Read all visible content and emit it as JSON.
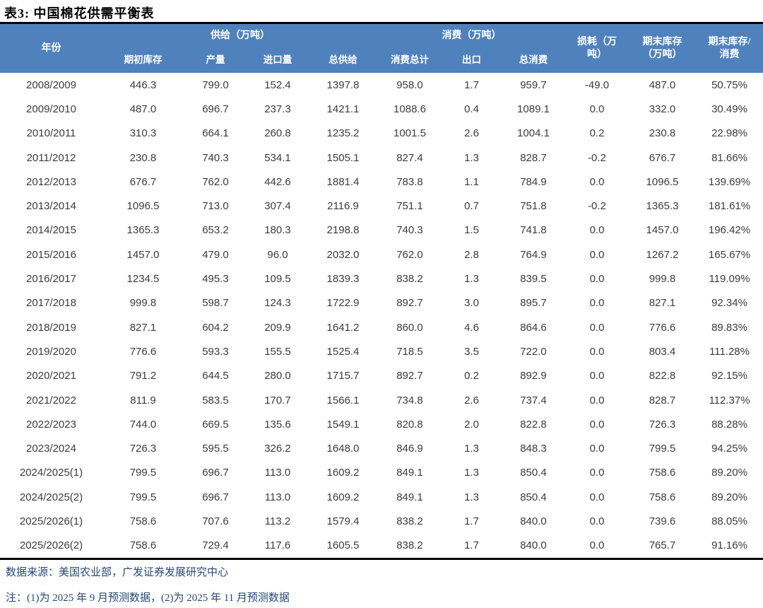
{
  "title": "表3: 中国棉花供需平衡表",
  "colors": {
    "header_bg": "#4F81BD",
    "header_text": "#FFFFFF",
    "rule": "#000000",
    "body_text": "#3B3B3B",
    "footer_text": "#25477B"
  },
  "table": {
    "col_groups": {
      "year": "年份",
      "supply": "供给（万吨）",
      "consumption": "消费（万吨）",
      "loss": "损耗（万\n吨）",
      "ending_stocks": "期末库存\n（万吨）",
      "stocks_to_use": "期末库存/\n消费"
    },
    "sub_headers": [
      "期初库存",
      "产量",
      "进口量",
      "总供给",
      "消费总计",
      "出口",
      "总消费"
    ],
    "column_keys": [
      "year",
      "beginning_stocks",
      "production",
      "imports",
      "total_supply",
      "consumption_total",
      "exports",
      "total_consumption",
      "loss",
      "ending_stocks",
      "ending_stocks_to_consumption"
    ],
    "rows": [
      [
        "2008/2009",
        "446.3",
        "799.0",
        "152.4",
        "1397.8",
        "958.0",
        "1.7",
        "959.7",
        "-49.0",
        "487.0",
        "50.75%"
      ],
      [
        "2009/2010",
        "487.0",
        "696.7",
        "237.3",
        "1421.1",
        "1088.6",
        "0.4",
        "1089.1",
        "0.0",
        "332.0",
        "30.49%"
      ],
      [
        "2010/2011",
        "310.3",
        "664.1",
        "260.8",
        "1235.2",
        "1001.5",
        "2.6",
        "1004.1",
        "0.2",
        "230.8",
        "22.98%"
      ],
      [
        "2011/2012",
        "230.8",
        "740.3",
        "534.1",
        "1505.1",
        "827.4",
        "1.3",
        "828.7",
        "-0.2",
        "676.7",
        "81.66%"
      ],
      [
        "2012/2013",
        "676.7",
        "762.0",
        "442.6",
        "1881.4",
        "783.8",
        "1.1",
        "784.9",
        "0.0",
        "1096.5",
        "139.69%"
      ],
      [
        "2013/2014",
        "1096.5",
        "713.0",
        "307.4",
        "2116.9",
        "751.1",
        "0.7",
        "751.8",
        "-0.2",
        "1365.3",
        "181.61%"
      ],
      [
        "2014/2015",
        "1365.3",
        "653.2",
        "180.3",
        "2198.8",
        "740.3",
        "1.5",
        "741.8",
        "0.0",
        "1457.0",
        "196.42%"
      ],
      [
        "2015/2016",
        "1457.0",
        "479.0",
        "96.0",
        "2032.0",
        "762.0",
        "2.8",
        "764.9",
        "0.0",
        "1267.2",
        "165.67%"
      ],
      [
        "2016/2017",
        "1234.5",
        "495.3",
        "109.5",
        "1839.3",
        "838.2",
        "1.3",
        "839.5",
        "0.0",
        "999.8",
        "119.09%"
      ],
      [
        "2017/2018",
        "999.8",
        "598.7",
        "124.3",
        "1722.9",
        "892.7",
        "3.0",
        "895.7",
        "0.0",
        "827.1",
        "92.34%"
      ],
      [
        "2018/2019",
        "827.1",
        "604.2",
        "209.9",
        "1641.2",
        "860.0",
        "4.6",
        "864.6",
        "0.0",
        "776.6",
        "89.83%"
      ],
      [
        "2019/2020",
        "776.6",
        "593.3",
        "155.5",
        "1525.4",
        "718.5",
        "3.5",
        "722.0",
        "0.0",
        "803.4",
        "111.28%"
      ],
      [
        "2020/2021",
        "791.2",
        "644.5",
        "280.0",
        "1715.7",
        "892.7",
        "0.2",
        "892.9",
        "0.0",
        "822.8",
        "92.15%"
      ],
      [
        "2021/2022",
        "811.9",
        "583.5",
        "170.7",
        "1566.1",
        "734.8",
        "2.6",
        "737.4",
        "0.0",
        "828.7",
        "112.37%"
      ],
      [
        "2022/2023",
        "744.0",
        "669.5",
        "135.6",
        "1549.1",
        "820.8",
        "2.0",
        "822.8",
        "0.0",
        "726.3",
        "88.28%"
      ],
      [
        "2023/2024",
        "726.3",
        "595.5",
        "326.2",
        "1648.0",
        "846.9",
        "1.3",
        "848.3",
        "0.0",
        "799.5",
        "94.25%"
      ],
      [
        "2024/2025(1)",
        "799.5",
        "696.7",
        "113.0",
        "1609.2",
        "849.1",
        "1.3",
        "850.4",
        "0.0",
        "758.6",
        "89.20%"
      ],
      [
        "2024/2025(2)",
        "799.5",
        "696.7",
        "113.0",
        "1609.2",
        "849.1",
        "1.3",
        "850.4",
        "0.0",
        "758.6",
        "89.20%"
      ],
      [
        "2025/2026(1)",
        "758.6",
        "707.6",
        "113.2",
        "1579.4",
        "838.2",
        "1.7",
        "840.0",
        "0.0",
        "739.6",
        "88.05%"
      ],
      [
        "2025/2026(2)",
        "758.6",
        "729.4",
        "117.6",
        "1605.5",
        "838.2",
        "1.7",
        "840.0",
        "0.0",
        "765.7",
        "91.16%"
      ]
    ]
  },
  "footer": {
    "source": "数据来源：美国农业部，广发证券发展研究中心",
    "note": "注：(1)为 2025 年 9 月预测数据，(2)为 2025 年 11 月预测数据"
  }
}
